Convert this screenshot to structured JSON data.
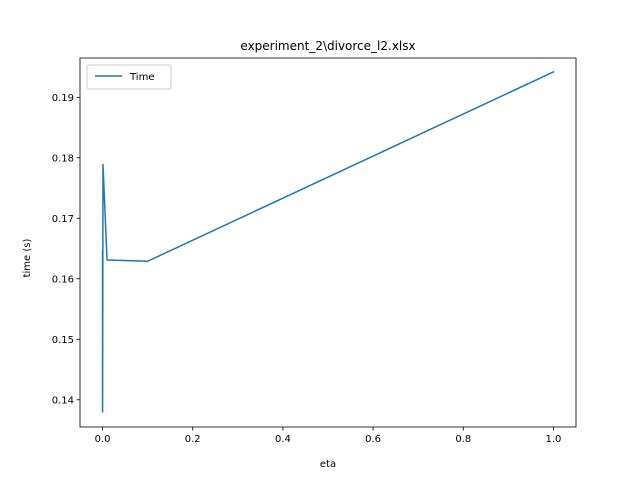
{
  "chart_data": {
    "type": "line",
    "title": "experiment_2\\divorce_l2.xlsx",
    "xlabel": "eta",
    "ylabel": "time (s)",
    "xlim": [
      -0.05,
      1.05
    ],
    "ylim": [
      0.1355,
      0.1965
    ],
    "xticks": [
      0.0,
      0.2,
      0.4,
      0.6,
      0.8,
      1.0
    ],
    "xtick_labels": [
      "0.0",
      "0.2",
      "0.4",
      "0.6",
      "0.8",
      "1.0"
    ],
    "yticks": [
      0.14,
      0.15,
      0.16,
      0.17,
      0.18,
      0.19
    ],
    "ytick_labels": [
      "0.14",
      "0.15",
      "0.16",
      "0.17",
      "0.18",
      "0.19"
    ],
    "grid": false,
    "legend": {
      "placement": "upper-left",
      "entries": [
        "Time"
      ]
    },
    "series": [
      {
        "name": "Time",
        "color": "#1f77b4",
        "x": [
          0.0,
          1e-06,
          1e-05,
          0.0001,
          0.001,
          0.01,
          0.1,
          1.0
        ],
        "y": [
          0.1645,
          0.138,
          0.1648,
          0.1381,
          0.1789,
          0.1631,
          0.1629,
          0.1942
        ]
      }
    ]
  }
}
